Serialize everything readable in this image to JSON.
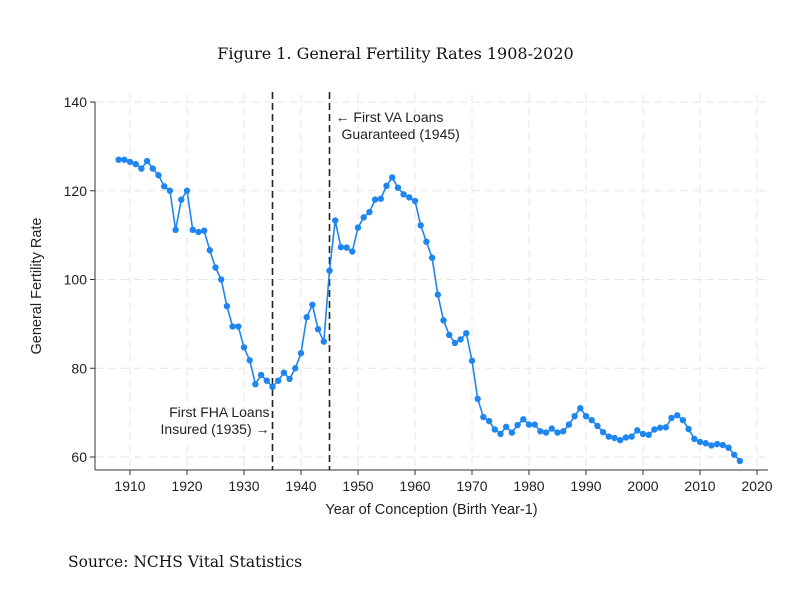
{
  "chart_data": {
    "type": "line",
    "title": "Figure 1. General Fertility Rates 1908-2020",
    "xlabel": "Year of Conception (Birth Year-1)",
    "ylabel": "General Fertility Rate",
    "xlim": [
      1907.5,
      2021
    ],
    "ylim": [
      57,
      142
    ],
    "xticks": [
      1910,
      1920,
      1930,
      1940,
      1950,
      1960,
      1970,
      1980,
      1990,
      2000,
      2010,
      2020
    ],
    "yticks": [
      60,
      80,
      100,
      120,
      140
    ],
    "grid": true,
    "series": [
      {
        "name": "General Fertility Rate",
        "color": "#1f86f0",
        "x": [
          1908,
          1909,
          1910,
          1911,
          1912,
          1913,
          1914,
          1915,
          1916,
          1917,
          1918,
          1919,
          1920,
          1921,
          1922,
          1923,
          1924,
          1925,
          1926,
          1927,
          1928,
          1929,
          1930,
          1931,
          1932,
          1933,
          1934,
          1935,
          1936,
          1937,
          1938,
          1939,
          1940,
          1941,
          1942,
          1943,
          1944,
          1945,
          1946,
          1947,
          1948,
          1949,
          1950,
          1951,
          1952,
          1953,
          1954,
          1955,
          1956,
          1957,
          1958,
          1959,
          1960,
          1961,
          1962,
          1963,
          1964,
          1965,
          1966,
          1967,
          1968,
          1969,
          1970,
          1971,
          1972,
          1973,
          1974,
          1975,
          1976,
          1977,
          1978,
          1979,
          1980,
          1981,
          1982,
          1983,
          1984,
          1985,
          1986,
          1987,
          1988,
          1989,
          1990,
          1991,
          1992,
          1993,
          1994,
          1995,
          1996,
          1997,
          1998,
          1999,
          2000,
          2001,
          2002,
          2003,
          2004,
          2005,
          2006,
          2007,
          2008,
          2009,
          2010,
          2011,
          2012,
          2013,
          2014,
          2015,
          2016,
          2017
        ],
        "y": [
          127,
          127,
          126.5,
          126,
          125,
          126.7,
          125,
          123.5,
          121,
          120,
          111.2,
          118,
          120,
          111.2,
          110.7,
          111,
          106.6,
          102.7,
          100,
          94,
          89.4,
          89.4,
          84.7,
          81.8,
          76.4,
          78.5,
          77.2,
          75.8,
          77.2,
          79,
          77.6,
          80,
          83.4,
          91.5,
          94.3,
          88.8,
          86,
          102,
          113.3,
          107.3,
          107.2,
          106.3,
          111.7,
          114,
          115.2,
          118,
          118.2,
          121.1,
          123,
          120.7,
          119.2,
          118.5,
          117.7,
          112.2,
          108.5,
          104.9,
          96.6,
          90.8,
          87.5,
          85.7,
          86.5,
          87.9,
          81.7,
          73.1,
          69,
          68.1,
          66.2,
          65.2,
          66.8,
          65.5,
          67.2,
          68.5,
          67.3,
          67.3,
          65.8,
          65.5,
          66.4,
          65.5,
          65.8,
          67.3,
          69.2,
          71,
          69.2,
          68.3,
          67,
          65.6,
          64.6,
          64.3,
          63.8,
          64.4,
          64.6,
          66,
          65.2,
          65,
          66.2,
          66.6,
          66.7,
          68.8,
          69.4,
          68.3,
          66.3,
          64.1,
          63.4,
          63.1,
          62.6,
          62.9,
          62.7,
          62.1,
          60.5,
          59.1
        ]
      }
    ],
    "annotations": [
      {
        "x": 1935,
        "lines": [
          "First FHA Loans",
          "Insured (1935) →"
        ]
      },
      {
        "x": 1945,
        "lines": [
          "← First VA Loans",
          "Guaranteed (1945)"
        ]
      }
    ]
  },
  "source": "Source: NCHS Vital Statistics"
}
